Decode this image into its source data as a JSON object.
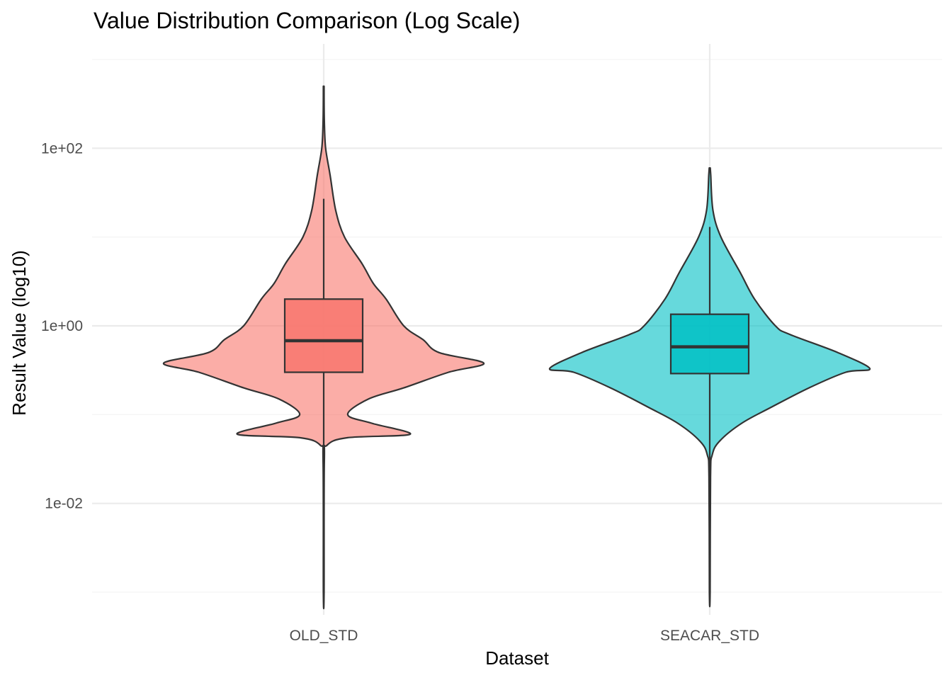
{
  "chart_data": {
    "type": "violin",
    "title": "Value Distribution Comparison (Log Scale)",
    "xlabel": "Dataset",
    "ylabel": "Result Value (log10)",
    "y_scale": "log10",
    "ylim": [
      0.001,
      1000
    ],
    "y_ticks": [
      0.01,
      1,
      100
    ],
    "y_tick_labels": [
      "1e-02",
      "1e+00",
      "1e+02"
    ],
    "grid": true,
    "legend": "none",
    "categories": [
      "OLD_STD",
      "SEACAR_STD"
    ],
    "series": [
      {
        "category": "OLD_STD",
        "color": "#F8766D",
        "min": 0.001,
        "max": 500,
        "box": {
          "lower_whisker": 0.001,
          "q1": 0.3,
          "median": 0.68,
          "q3": 2.0,
          "upper_whisker": 27
        },
        "density": [
          [
            0.001,
            0.002
          ],
          [
            0.03,
            0.004
          ],
          [
            0.045,
            0.02
          ],
          [
            0.055,
            0.15
          ],
          [
            0.06,
            0.54
          ],
          [
            0.08,
            0.3
          ],
          [
            0.1,
            0.15
          ],
          [
            0.15,
            0.28
          ],
          [
            0.2,
            0.5
          ],
          [
            0.3,
            0.78
          ],
          [
            0.38,
            1.0
          ],
          [
            0.5,
            0.72
          ],
          [
            0.7,
            0.62
          ],
          [
            1.0,
            0.5
          ],
          [
            2.0,
            0.39
          ],
          [
            3.0,
            0.31
          ],
          [
            5.0,
            0.24
          ],
          [
            10,
            0.13
          ],
          [
            20,
            0.075
          ],
          [
            50,
            0.04
          ],
          [
            100,
            0.012
          ],
          [
            200,
            0.004
          ],
          [
            500,
            0.002
          ]
        ]
      },
      {
        "category": "SEACAR_STD",
        "color": "#00BFC4",
        "min": 0.001,
        "max": 60,
        "box": {
          "lower_whisker": 0.001,
          "q1": 0.29,
          "median": 0.58,
          "q3": 1.35,
          "upper_whisker": 13
        },
        "density": [
          [
            0.001,
            0.002
          ],
          [
            0.02,
            0.005
          ],
          [
            0.035,
            0.015
          ],
          [
            0.05,
            0.06
          ],
          [
            0.08,
            0.2
          ],
          [
            0.12,
            0.38
          ],
          [
            0.2,
            0.62
          ],
          [
            0.3,
            0.85
          ],
          [
            0.33,
            1.0
          ],
          [
            0.5,
            0.8
          ],
          [
            0.8,
            0.5
          ],
          [
            1.0,
            0.41
          ],
          [
            2.0,
            0.28
          ],
          [
            4.0,
            0.19
          ],
          [
            10,
            0.07
          ],
          [
            20,
            0.02
          ],
          [
            50,
            0.006
          ],
          [
            60,
            0.003
          ]
        ]
      }
    ]
  }
}
